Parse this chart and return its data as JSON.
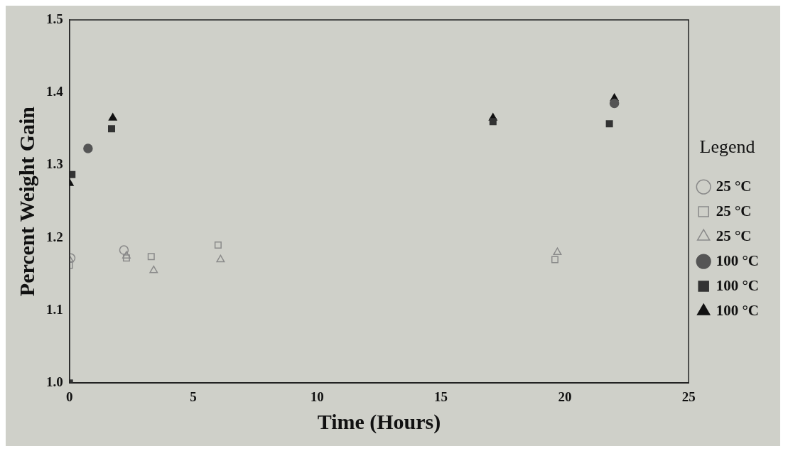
{
  "chart_data": {
    "type": "scatter",
    "xlabel": "Time (Hours)",
    "ylabel": "Percent Weight Gain",
    "legend_title": "Legend",
    "legend": "right",
    "xlim": [
      0,
      25
    ],
    "xticks": [
      0,
      5,
      10,
      15,
      20,
      25
    ],
    "ylim": [
      1.0,
      1.5
    ],
    "yticks": [
      {
        "value": 1.0,
        "label": "1.0"
      },
      1.1,
      1.2,
      1.3,
      1.4,
      1.5
    ],
    "grid": false,
    "series": [
      {
        "name": "25 °C",
        "marker": "circle",
        "color": "#8a8a8a",
        "x": [
          0.05,
          2.2
        ],
        "values": [
          1.172,
          1.183
        ]
      },
      {
        "name": "25 °C",
        "marker": "square",
        "color": "#8a8a8a",
        "x": [
          0,
          2.3,
          3.3,
          6,
          19.6
        ],
        "values": [
          1.162,
          1.172,
          1.174,
          1.19,
          1.17
        ]
      },
      {
        "name": "25 °C",
        "marker": "triangle",
        "color": "#8a8a8a",
        "x": [
          0,
          2.3,
          3.4,
          6.1,
          19.7
        ],
        "values": [
          1.17,
          1.175,
          1.155,
          1.17,
          1.18
        ]
      },
      {
        "name": "100 °C",
        "marker": "circle",
        "color": "#555555",
        "x": [
          0.75,
          22
        ],
        "values": [
          1.323,
          1.385
        ]
      },
      {
        "name": "100 °C",
        "marker": "square",
        "color": "#333333",
        "x": [
          0,
          0.1,
          1.7,
          17.1,
          21.8
        ],
        "values": [
          1.0,
          1.287,
          1.35,
          1.36,
          1.357
        ]
      },
      {
        "name": "100 °C",
        "marker": "triangle",
        "color": "#111111",
        "x": [
          0,
          1.75,
          17.1,
          22
        ],
        "values": [
          1.275,
          1.365,
          1.365,
          1.392
        ]
      }
    ]
  }
}
